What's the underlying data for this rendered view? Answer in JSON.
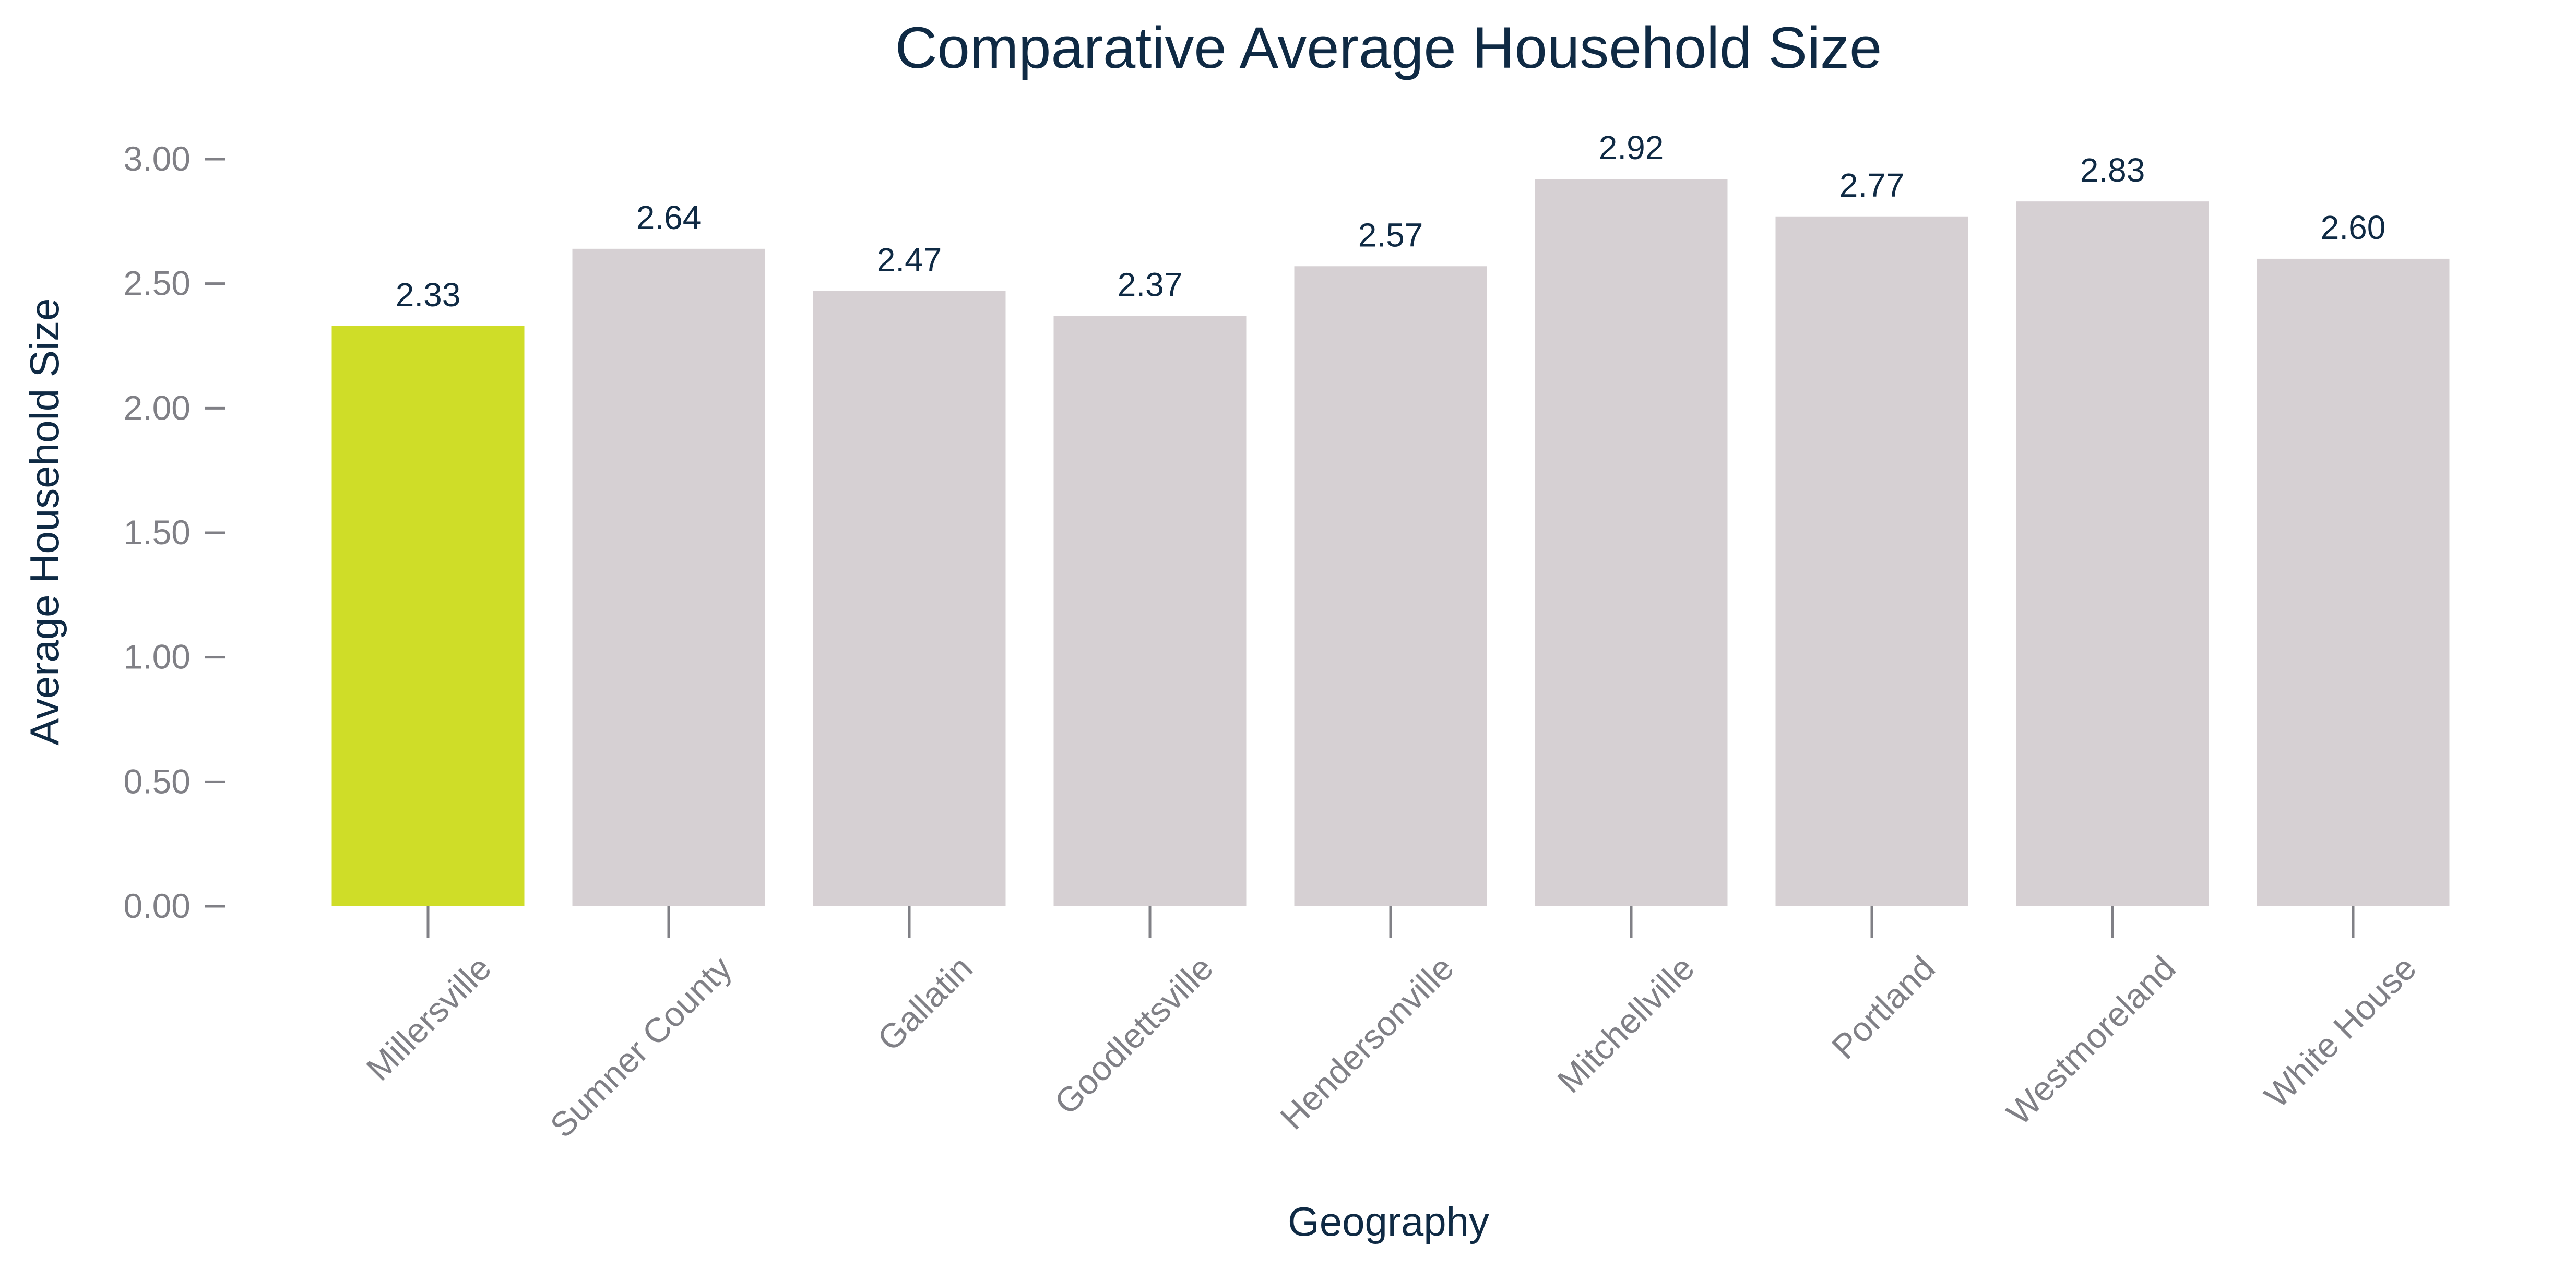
{
  "chart_data": {
    "type": "bar",
    "title": "Comparative Average Household Size",
    "xlabel": "Geography",
    "ylabel": "Average Household Size",
    "categories": [
      "Millersville",
      "Sumner County",
      "Gallatin",
      "Goodlettsville",
      "Hendersonville",
      "Mitchellville",
      "Portland",
      "Westmoreland",
      "White House"
    ],
    "values": [
      2.33,
      2.64,
      2.47,
      2.37,
      2.57,
      2.92,
      2.77,
      2.83,
      2.6
    ],
    "value_labels": [
      "2.33",
      "2.64",
      "2.47",
      "2.37",
      "2.57",
      "2.92",
      "2.77",
      "2.83",
      "2.60"
    ],
    "ylim": [
      0,
      3
    ],
    "yticks": [
      0,
      0.5,
      1.0,
      1.5,
      2.0,
      2.5,
      3.0
    ],
    "ytick_labels": [
      "0.00",
      "0.50",
      "1.00",
      "1.50",
      "2.00",
      "2.50",
      "3.00"
    ],
    "grid": false,
    "legend": "none",
    "colors": {
      "highlight": "#cfdd28",
      "bar": "#d6d0d3",
      "text": "#0f2a44",
      "tick": "#808086"
    },
    "highlight_category": "Millersville"
  }
}
